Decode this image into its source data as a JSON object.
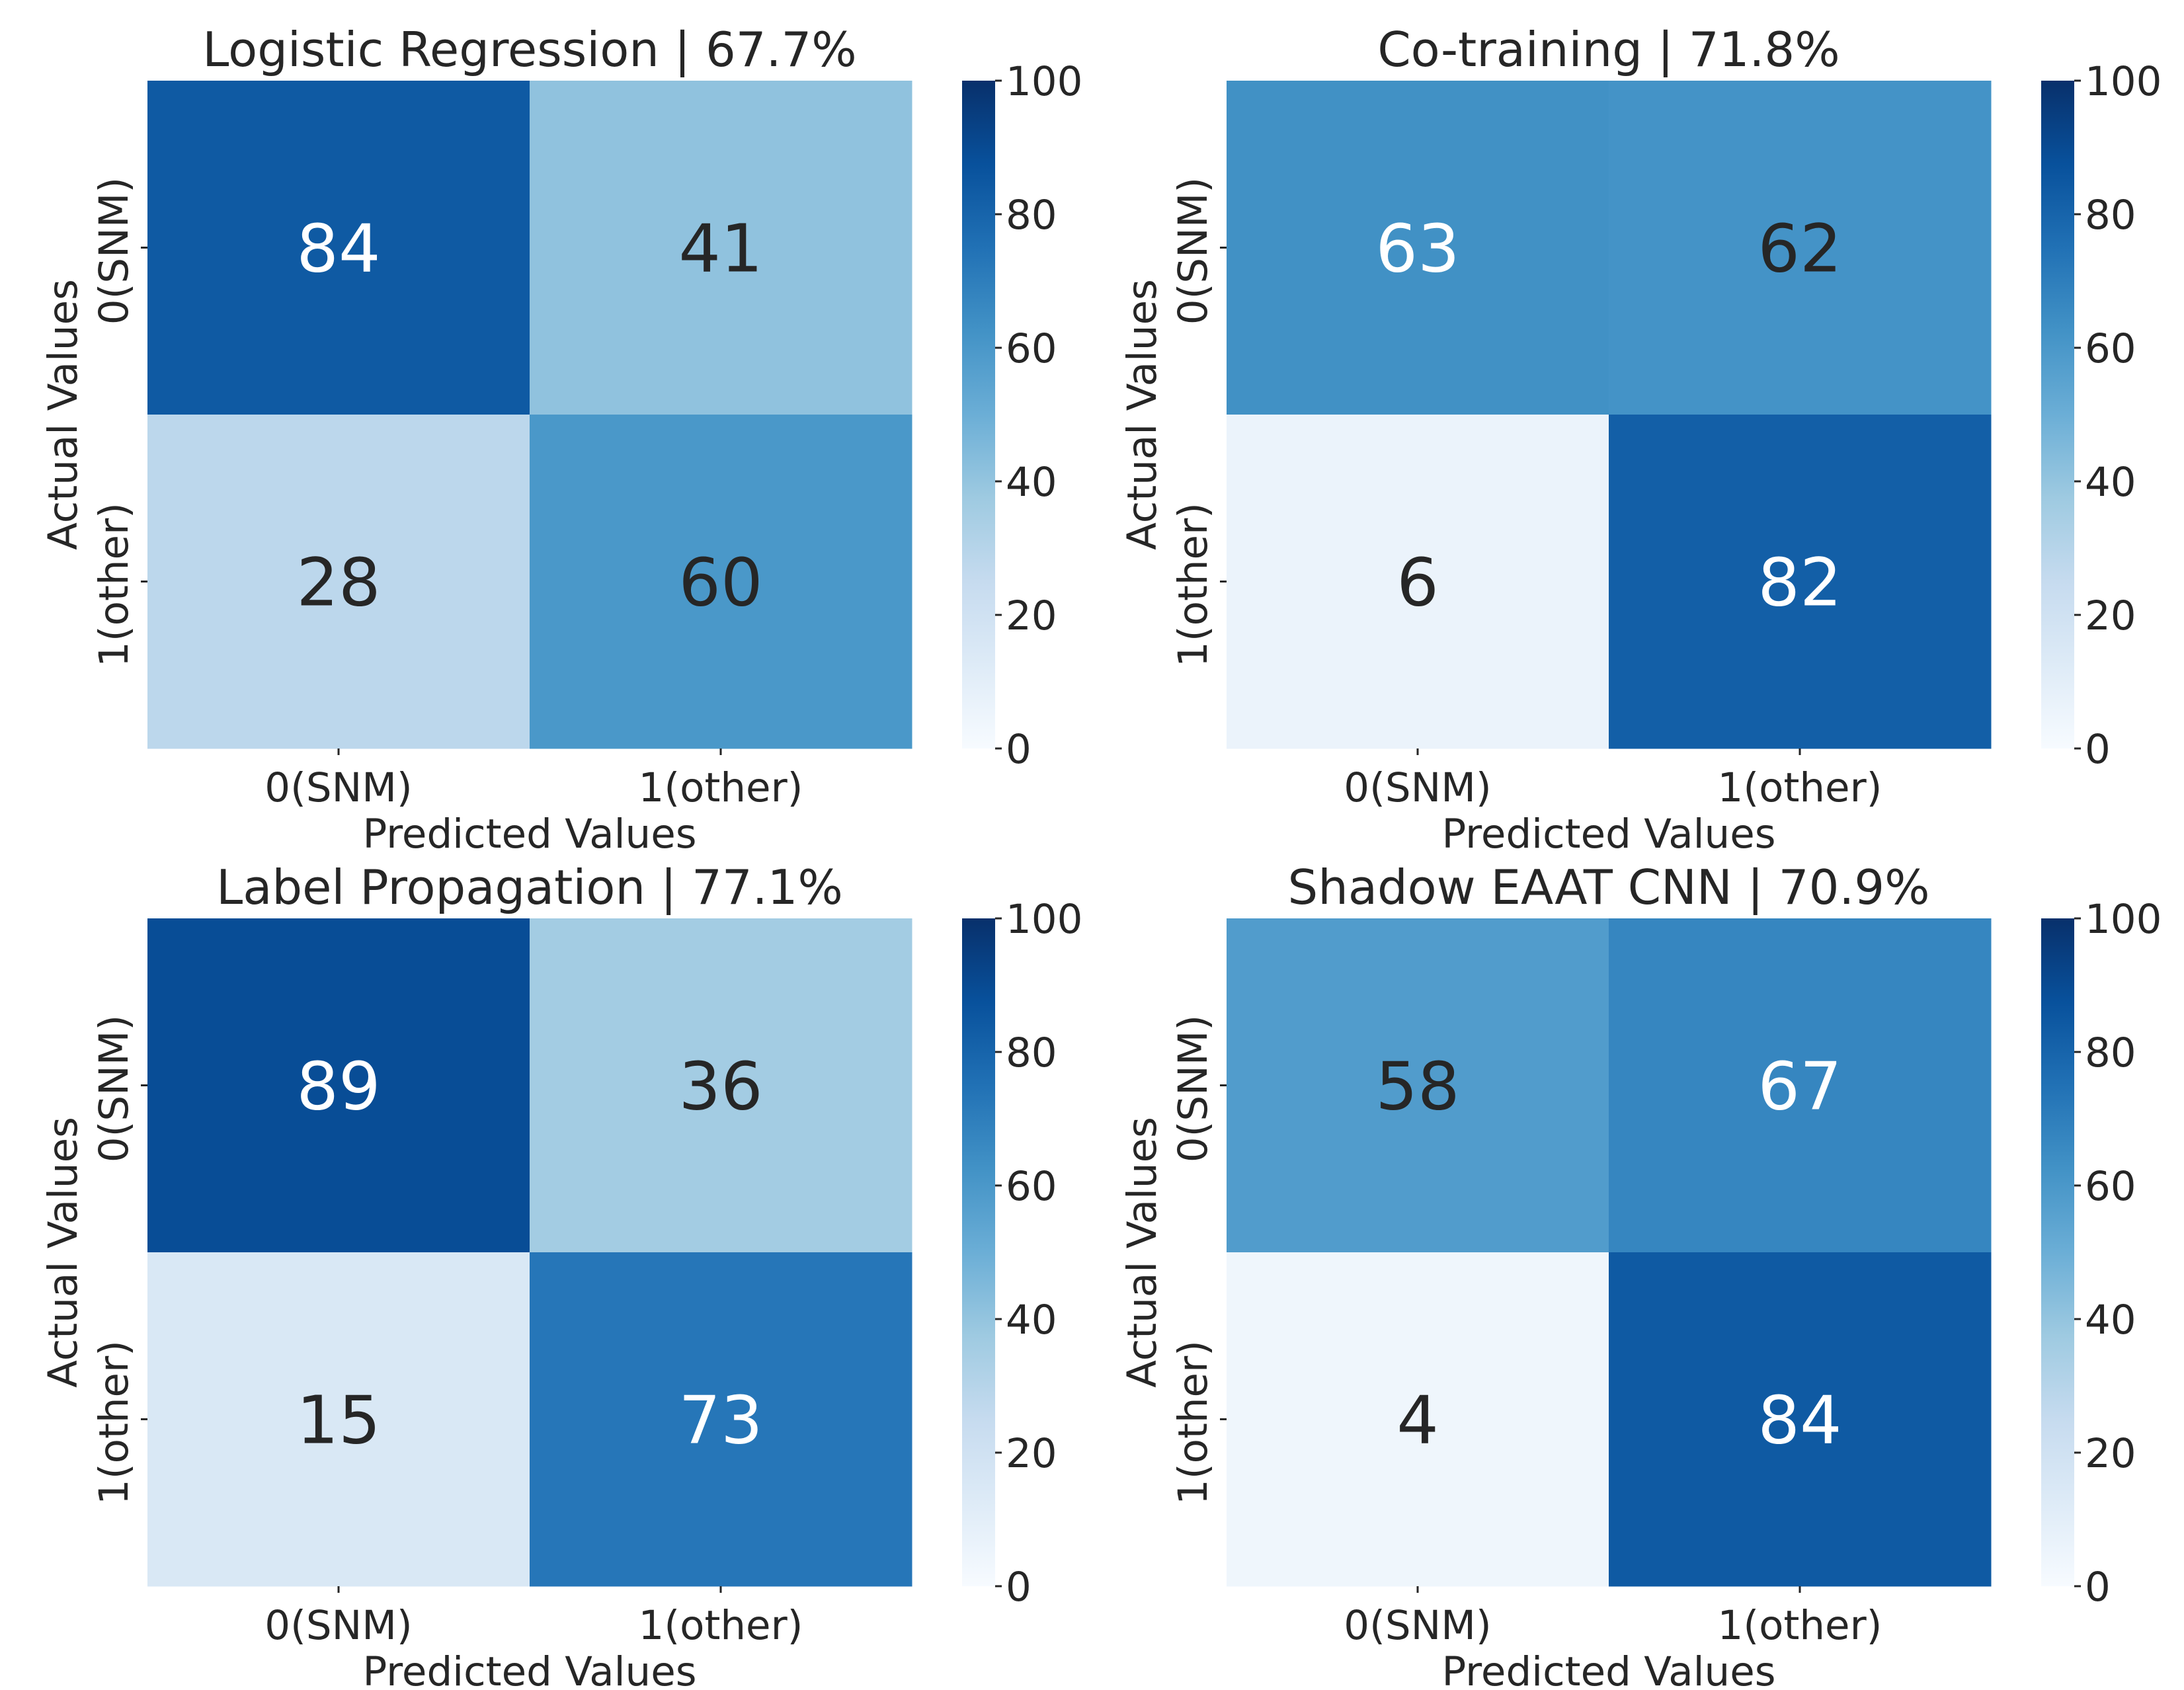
{
  "figure": {
    "colormap": "Blues"
  },
  "chart_data": [
    {
      "type": "heatmap",
      "title": "Logistic Regression | 67.7%",
      "xlabel": "Predicted Values",
      "ylabel": "Actual Values",
      "x_ticklabels": [
        "0(SNM)",
        "1(other)"
      ],
      "y_ticklabels": [
        "0(SNM)",
        "1(other)"
      ],
      "values": [
        [
          84,
          41
        ],
        [
          28,
          60
        ]
      ],
      "vmin": 0,
      "vmax": 100,
      "colorbar_ticks": [
        0,
        20,
        40,
        60,
        80,
        100
      ]
    },
    {
      "type": "heatmap",
      "title": "Co-training | 71.8%",
      "xlabel": "Predicted Values",
      "ylabel": "Actual Values",
      "x_ticklabels": [
        "0(SNM)",
        "1(other)"
      ],
      "y_ticklabels": [
        "0(SNM)",
        "1(other)"
      ],
      "values": [
        [
          63,
          62
        ],
        [
          6,
          82
        ]
      ],
      "vmin": 0,
      "vmax": 100,
      "colorbar_ticks": [
        0,
        20,
        40,
        60,
        80,
        100
      ]
    },
    {
      "type": "heatmap",
      "title": "Label Propagation | 77.1%",
      "xlabel": "Predicted Values",
      "ylabel": "Actual Values",
      "x_ticklabels": [
        "0(SNM)",
        "1(other)"
      ],
      "y_ticklabels": [
        "0(SNM)",
        "1(other)"
      ],
      "values": [
        [
          89,
          36
        ],
        [
          15,
          73
        ]
      ],
      "vmin": 0,
      "vmax": 100,
      "colorbar_ticks": [
        0,
        20,
        40,
        60,
        80,
        100
      ]
    },
    {
      "type": "heatmap",
      "title": "Shadow EAAT CNN | 70.9%",
      "xlabel": "Predicted Values",
      "ylabel": "Actual Values",
      "x_ticklabels": [
        "0(SNM)",
        "1(other)"
      ],
      "y_ticklabels": [
        "0(SNM)",
        "1(other)"
      ],
      "values": [
        [
          58,
          67
        ],
        [
          4,
          84
        ]
      ],
      "vmin": 0,
      "vmax": 100,
      "colorbar_ticks": [
        0,
        20,
        40,
        60,
        80,
        100
      ]
    }
  ]
}
